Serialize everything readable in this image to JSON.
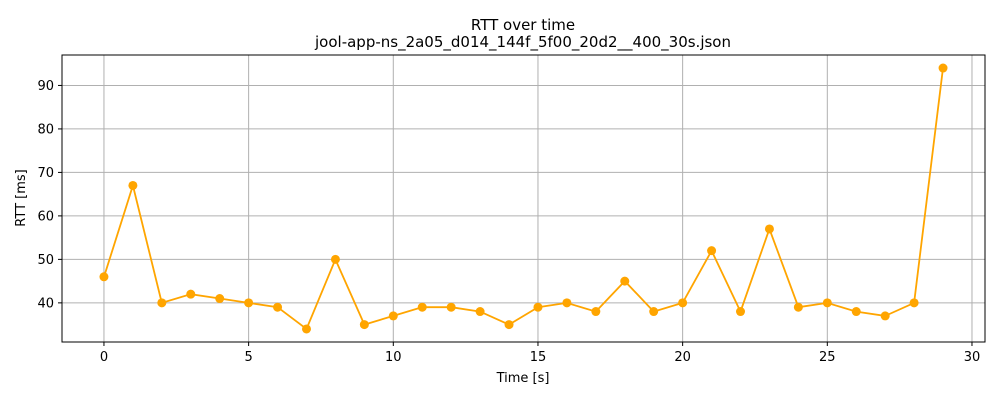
{
  "chart_data": {
    "type": "line",
    "title": "RTT over time",
    "subtitle": "jool-app-ns_2a05_d014_144f_5f00_20d2__400_30s.json",
    "xlabel": "Time [s]",
    "ylabel": "RTT [ms]",
    "xlim": [
      -1.45,
      30.45
    ],
    "ylim": [
      31,
      97
    ],
    "xticks": [
      0,
      5,
      10,
      15,
      20,
      25,
      30
    ],
    "yticks": [
      40,
      50,
      60,
      70,
      80,
      90
    ],
    "grid": true,
    "color": "#ffa500",
    "x": [
      0,
      1,
      2,
      3,
      4,
      5,
      6,
      7,
      8,
      9,
      10,
      11,
      12,
      13,
      14,
      15,
      16,
      17,
      18,
      19,
      20,
      21,
      22,
      23,
      24,
      25,
      26,
      27,
      28,
      29
    ],
    "y": [
      46,
      67,
      40,
      42,
      41,
      40,
      39,
      34,
      50,
      35,
      37,
      39,
      39,
      38,
      35,
      39,
      40,
      38,
      45,
      38,
      40,
      52,
      38,
      57,
      39,
      40,
      38,
      37,
      40,
      94
    ]
  }
}
